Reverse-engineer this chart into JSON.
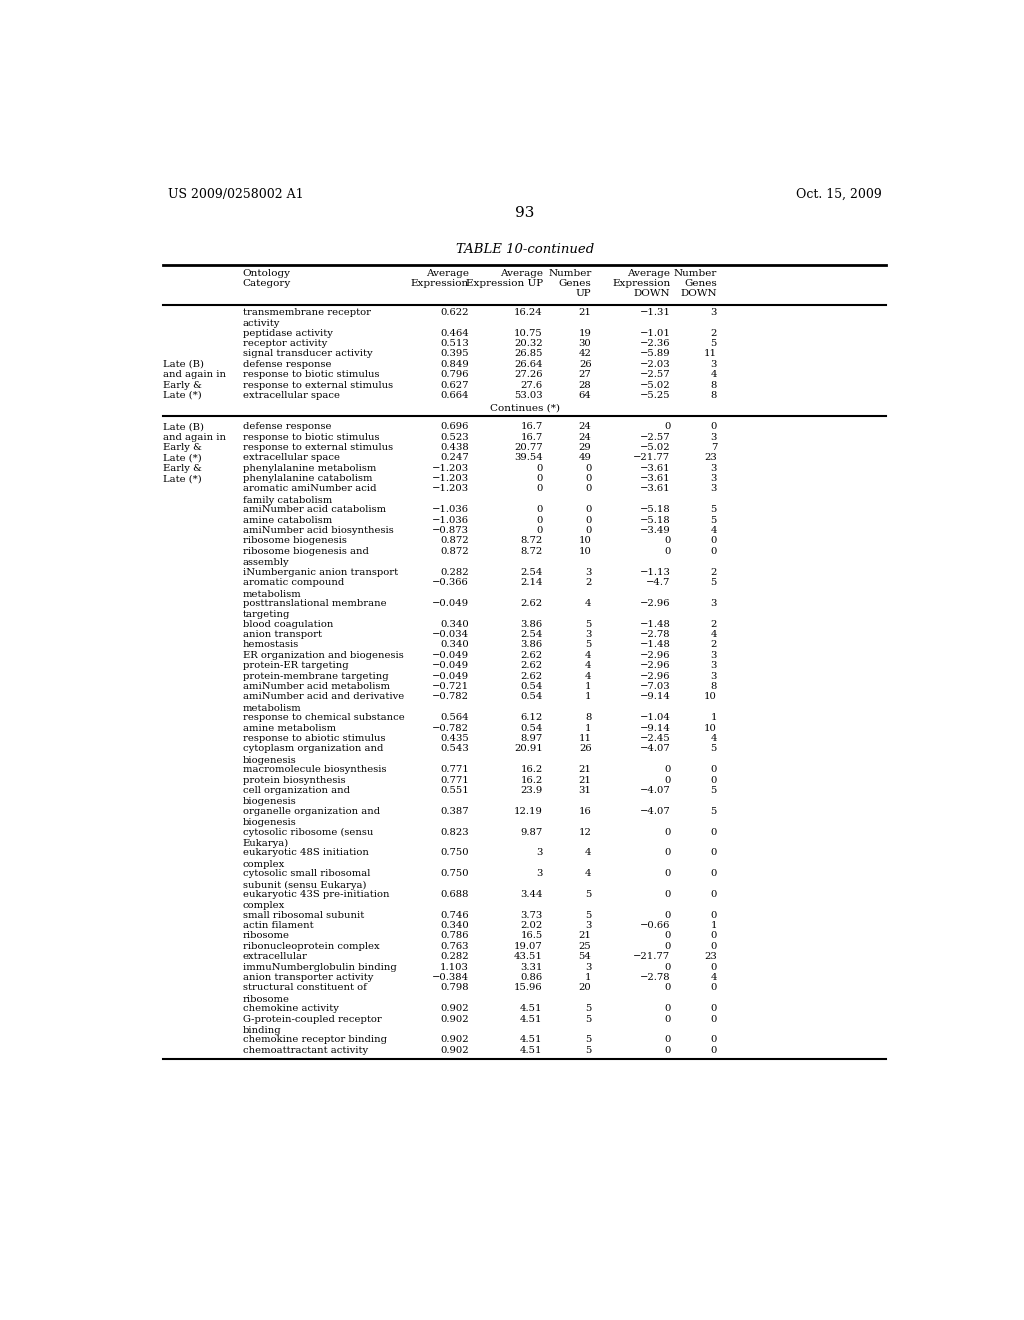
{
  "header_left": "US 2009/0258002 A1",
  "header_right": "Oct. 15, 2009",
  "page_number": "93",
  "table_title": "TABLE 10-continued",
  "rows": [
    [
      "",
      "transmembrane receptor\nactivity",
      "0.622",
      "16.24",
      "21",
      "−1.31",
      "3"
    ],
    [
      "",
      "peptidase activity",
      "0.464",
      "10.75",
      "19",
      "−1.01",
      "2"
    ],
    [
      "",
      "receptor activity",
      "0.513",
      "20.32",
      "30",
      "−2.36",
      "5"
    ],
    [
      "",
      "signal transducer activity",
      "0.395",
      "26.85",
      "42",
      "−5.89",
      "11"
    ],
    [
      "Late (B)",
      "defense response",
      "0.849",
      "26.64",
      "26",
      "−2.03",
      "3"
    ],
    [
      "and again in",
      "response to biotic stimulus",
      "0.796",
      "27.26",
      "27",
      "−2.57",
      "4"
    ],
    [
      "Early &",
      "response to external stimulus",
      "0.627",
      "27.6",
      "28",
      "−5.02",
      "8"
    ],
    [
      "Late (*)",
      "extracellular space",
      "0.664",
      "53.03",
      "64",
      "−5.25",
      "8"
    ],
    [
      "CONTINUES",
      "",
      "",
      "",
      "",
      "",
      ""
    ],
    [
      "Late (B)",
      "defense response",
      "0.696",
      "16.7",
      "24",
      "0",
      "0"
    ],
    [
      "and again in",
      "response to biotic stimulus",
      "0.523",
      "16.7",
      "24",
      "−2.57",
      "3"
    ],
    [
      "Early &",
      "response to external stimulus",
      "0.438",
      "20.77",
      "29",
      "−5.02",
      "7"
    ],
    [
      "Late (*)",
      "extracellular space",
      "0.247",
      "39.54",
      "49",
      "−21.77",
      "23"
    ],
    [
      "Early &",
      "phenylalanine metabolism",
      "−1.203",
      "0",
      "0",
      "−3.61",
      "3"
    ],
    [
      "Late (*)",
      "phenylalanine catabolism",
      "−1.203",
      "0",
      "0",
      "−3.61",
      "3"
    ],
    [
      "",
      "aromatic amiNumber acid\nfamily catabolism",
      "−1.203",
      "0",
      "0",
      "−3.61",
      "3"
    ],
    [
      "",
      "amiNumber acid catabolism",
      "−1.036",
      "0",
      "0",
      "−5.18",
      "5"
    ],
    [
      "",
      "amine catabolism",
      "−1.036",
      "0",
      "0",
      "−5.18",
      "5"
    ],
    [
      "",
      "amiNumber acid biosynthesis",
      "−0.873",
      "0",
      "0",
      "−3.49",
      "4"
    ],
    [
      "",
      "ribosome biogenesis",
      "0.872",
      "8.72",
      "10",
      "0",
      "0"
    ],
    [
      "",
      "ribosome biogenesis and\nassembly",
      "0.872",
      "8.72",
      "10",
      "0",
      "0"
    ],
    [
      "",
      "iNumberganic anion transport",
      "0.282",
      "2.54",
      "3",
      "−1.13",
      "2"
    ],
    [
      "",
      "aromatic compound\nmetabolism",
      "−0.366",
      "2.14",
      "2",
      "−4.7",
      "5"
    ],
    [
      "",
      "posttranslational membrane\ntargeting",
      "−0.049",
      "2.62",
      "4",
      "−2.96",
      "3"
    ],
    [
      "",
      "blood coagulation",
      "0.340",
      "3.86",
      "5",
      "−1.48",
      "2"
    ],
    [
      "",
      "anion transport",
      "−0.034",
      "2.54",
      "3",
      "−2.78",
      "4"
    ],
    [
      "",
      "hemostasis",
      "0.340",
      "3.86",
      "5",
      "−1.48",
      "2"
    ],
    [
      "",
      "ER organization and biogenesis",
      "−0.049",
      "2.62",
      "4",
      "−2.96",
      "3"
    ],
    [
      "",
      "protein-ER targeting",
      "−0.049",
      "2.62",
      "4",
      "−2.96",
      "3"
    ],
    [
      "",
      "protein-membrane targeting",
      "−0.049",
      "2.62",
      "4",
      "−2.96",
      "3"
    ],
    [
      "",
      "amiNumber acid metabolism",
      "−0.721",
      "0.54",
      "1",
      "−7.03",
      "8"
    ],
    [
      "",
      "amiNumber acid and derivative\nmetabolism",
      "−0.782",
      "0.54",
      "1",
      "−9.14",
      "10"
    ],
    [
      "",
      "response to chemical substance",
      "0.564",
      "6.12",
      "8",
      "−1.04",
      "1"
    ],
    [
      "",
      "amine metabolism",
      "−0.782",
      "0.54",
      "1",
      "−9.14",
      "10"
    ],
    [
      "",
      "response to abiotic stimulus",
      "0.435",
      "8.97",
      "11",
      "−2.45",
      "4"
    ],
    [
      "",
      "cytoplasm organization and\nbiogenesis",
      "0.543",
      "20.91",
      "26",
      "−4.07",
      "5"
    ],
    [
      "",
      "macromolecule biosynthesis",
      "0.771",
      "16.2",
      "21",
      "0",
      "0"
    ],
    [
      "",
      "protein biosynthesis",
      "0.771",
      "16.2",
      "21",
      "0",
      "0"
    ],
    [
      "",
      "cell organization and\nbiogenesis",
      "0.551",
      "23.9",
      "31",
      "−4.07",
      "5"
    ],
    [
      "",
      "organelle organization and\nbiogenesis",
      "0.387",
      "12.19",
      "16",
      "−4.07",
      "5"
    ],
    [
      "",
      "cytosolic ribosome (sensu\nEukarya)",
      "0.823",
      "9.87",
      "12",
      "0",
      "0"
    ],
    [
      "",
      "eukaryotic 48S initiation\ncomplex",
      "0.750",
      "3",
      "4",
      "0",
      "0"
    ],
    [
      "",
      "cytosolic small ribosomal\nsubunit (sensu Eukarya)",
      "0.750",
      "3",
      "4",
      "0",
      "0"
    ],
    [
      "",
      "eukaryotic 43S pre-initiation\ncomplex",
      "0.688",
      "3.44",
      "5",
      "0",
      "0"
    ],
    [
      "",
      "small ribosomal subunit",
      "0.746",
      "3.73",
      "5",
      "0",
      "0"
    ],
    [
      "",
      "actin filament",
      "0.340",
      "2.02",
      "3",
      "−0.66",
      "1"
    ],
    [
      "",
      "ribosome",
      "0.786",
      "16.5",
      "21",
      "0",
      "0"
    ],
    [
      "",
      "ribonucleoprotein complex",
      "0.763",
      "19.07",
      "25",
      "0",
      "0"
    ],
    [
      "",
      "extracellular",
      "0.282",
      "43.51",
      "54",
      "−21.77",
      "23"
    ],
    [
      "",
      "immuNumberglobulin binding",
      "1.103",
      "3.31",
      "3",
      "0",
      "0"
    ],
    [
      "",
      "anion transporter activity",
      "−0.384",
      "0.86",
      "1",
      "−2.78",
      "4"
    ],
    [
      "",
      "structural constituent of\nribosome",
      "0.798",
      "15.96",
      "20",
      "0",
      "0"
    ],
    [
      "",
      "chemokine activity",
      "0.902",
      "4.51",
      "5",
      "0",
      "0"
    ],
    [
      "",
      "G-protein-coupled receptor\nbinding",
      "0.902",
      "4.51",
      "5",
      "0",
      "0"
    ],
    [
      "",
      "chemokine receptor binding",
      "0.902",
      "4.51",
      "5",
      "0",
      "0"
    ],
    [
      "",
      "chemoattractant activity",
      "0.902",
      "4.51",
      "5",
      "0",
      "0"
    ]
  ]
}
